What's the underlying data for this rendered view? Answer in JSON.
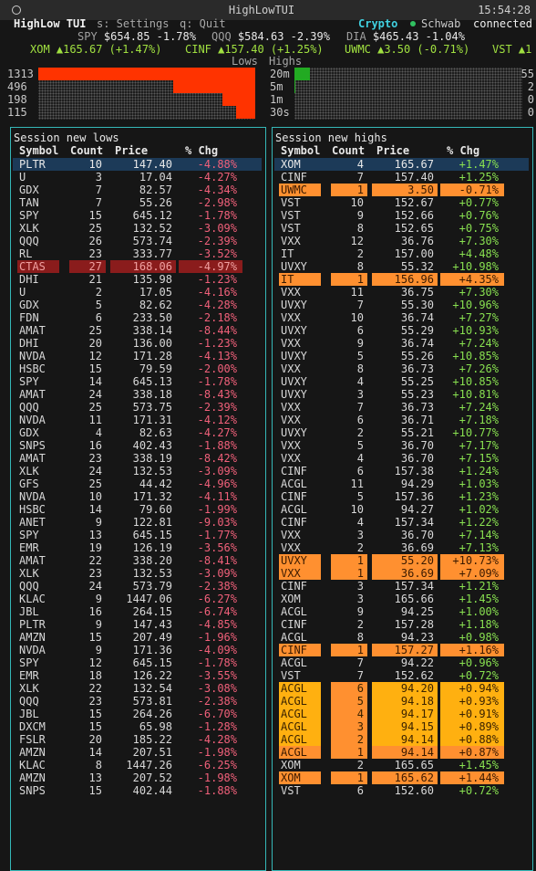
{
  "window": {
    "title": "HighLowTUI",
    "time": "15:54:28"
  },
  "header": {
    "app": "HighLow TUI",
    "keys": [
      "s: Settings",
      "q: Quit"
    ],
    "feeds": [
      "Crypto",
      "Schwab"
    ],
    "status": "connected"
  },
  "indices": [
    {
      "symbol": "SPY",
      "price": "$654.85",
      "change": "-1.78%"
    },
    {
      "symbol": "QQQ",
      "price": "$584.63",
      "change": "-2.39%"
    },
    {
      "symbol": "DIA",
      "price": "$465.43",
      "change": "-1.04%"
    }
  ],
  "watch": [
    {
      "symbol": "XOM",
      "price": "▲165.67",
      "change": "(+1.47%)"
    },
    {
      "symbol": "CINF",
      "price": "▲157.40",
      "change": "(+1.25%)"
    },
    {
      "symbol": "UWMC",
      "price": "▲3.50",
      "change": "(-0.71%)"
    },
    {
      "symbol": "VST",
      "price": "▲1",
      "change": ""
    }
  ],
  "activity": {
    "lows_label": "Lows",
    "highs_label": "Highs",
    "lows_color": "#ff3300",
    "highs_color": "#22aa22",
    "rows": [
      {
        "lows": 1313,
        "window": "20m",
        "highs": 55
      },
      {
        "lows": 496,
        "window": "5m",
        "highs": 2
      },
      {
        "lows": 198,
        "window": "1m",
        "highs": 0
      },
      {
        "lows": 115,
        "window": "30s",
        "highs": 0
      }
    ]
  },
  "lows": {
    "title": "Session new lows",
    "columns": [
      "Symbol",
      "Count",
      "Price",
      "% Chg"
    ],
    "chg_color": "#f0607a",
    "rows": [
      {
        "cells": [
          "PLTR",
          "10",
          "147.40",
          "-4.88%"
        ],
        "bg": "#1c3a58",
        "fg": "#e8e8e8"
      },
      {
        "cells": [
          "U",
          "3",
          "17.04",
          "-4.27%"
        ]
      },
      {
        "cells": [
          "GDX",
          "7",
          "82.57",
          "-4.34%"
        ]
      },
      {
        "cells": [
          "TAN",
          "7",
          "55.26",
          "-2.98%"
        ]
      },
      {
        "cells": [
          "SPY",
          "15",
          "645.12",
          "-1.78%"
        ]
      },
      {
        "cells": [
          "XLK",
          "25",
          "132.52",
          "-3.09%"
        ]
      },
      {
        "cells": [
          "QQQ",
          "26",
          "573.74",
          "-2.39%"
        ]
      },
      {
        "cells": [
          "RL",
          "23",
          "333.77",
          "-3.52%"
        ]
      },
      {
        "cells": [
          "CTAS",
          "27",
          "168.06",
          "-4.97%"
        ],
        "bg": "#8a1c1c",
        "fg": "#f0a0a0"
      },
      {
        "cells": [
          "DHI",
          "21",
          "135.98",
          "-1.23%"
        ]
      },
      {
        "cells": [
          "U",
          "2",
          "17.05",
          "-4.16%"
        ]
      },
      {
        "cells": [
          "GDX",
          "5",
          "82.62",
          "-4.28%"
        ]
      },
      {
        "cells": [
          "FDN",
          "6",
          "233.50",
          "-2.18%"
        ]
      },
      {
        "cells": [
          "AMAT",
          "25",
          "338.14",
          "-8.44%"
        ]
      },
      {
        "cells": [
          "DHI",
          "20",
          "136.00",
          "-1.23%"
        ]
      },
      {
        "cells": [
          "NVDA",
          "12",
          "171.28",
          "-4.13%"
        ]
      },
      {
        "cells": [
          "HSBC",
          "15",
          "79.59",
          "-2.00%"
        ]
      },
      {
        "cells": [
          "SPY",
          "14",
          "645.13",
          "-1.78%"
        ]
      },
      {
        "cells": [
          "AMAT",
          "24",
          "338.18",
          "-8.43%"
        ]
      },
      {
        "cells": [
          "QQQ",
          "25",
          "573.75",
          "-2.39%"
        ]
      },
      {
        "cells": [
          "NVDA",
          "11",
          "171.31",
          "-4.12%"
        ]
      },
      {
        "cells": [
          "GDX",
          "4",
          "82.63",
          "-4.27%"
        ]
      },
      {
        "cells": [
          "SNPS",
          "16",
          "402.43",
          "-1.88%"
        ]
      },
      {
        "cells": [
          "AMAT",
          "23",
          "338.19",
          "-8.42%"
        ]
      },
      {
        "cells": [
          "XLK",
          "24",
          "132.53",
          "-3.09%"
        ]
      },
      {
        "cells": [
          "GFS",
          "25",
          "44.42",
          "-4.96%"
        ]
      },
      {
        "cells": [
          "NVDA",
          "10",
          "171.32",
          "-4.11%"
        ]
      },
      {
        "cells": [
          "HSBC",
          "14",
          "79.60",
          "-1.99%"
        ]
      },
      {
        "cells": [
          "ANET",
          "9",
          "122.81",
          "-9.03%"
        ]
      },
      {
        "cells": [
          "SPY",
          "13",
          "645.15",
          "-1.77%"
        ]
      },
      {
        "cells": [
          "EMR",
          "19",
          "126.19",
          "-3.56%"
        ]
      },
      {
        "cells": [
          "AMAT",
          "22",
          "338.20",
          "-8.41%"
        ]
      },
      {
        "cells": [
          "XLK",
          "23",
          "132.53",
          "-3.09%"
        ]
      },
      {
        "cells": [
          "QQQ",
          "24",
          "573.79",
          "-2.38%"
        ]
      },
      {
        "cells": [
          "KLAC",
          "9",
          "1447.06",
          "-6.27%"
        ]
      },
      {
        "cells": [
          "JBL",
          "16",
          "264.15",
          "-6.74%"
        ]
      },
      {
        "cells": [
          "PLTR",
          "9",
          "147.43",
          "-4.85%"
        ]
      },
      {
        "cells": [
          "AMZN",
          "15",
          "207.49",
          "-1.96%"
        ]
      },
      {
        "cells": [
          "NVDA",
          "9",
          "171.36",
          "-4.09%"
        ]
      },
      {
        "cells": [
          "SPY",
          "12",
          "645.15",
          "-1.78%"
        ]
      },
      {
        "cells": [
          "EMR",
          "18",
          "126.22",
          "-3.55%"
        ]
      },
      {
        "cells": [
          "XLK",
          "22",
          "132.54",
          "-3.08%"
        ]
      },
      {
        "cells": [
          "QQQ",
          "23",
          "573.81",
          "-2.38%"
        ]
      },
      {
        "cells": [
          "JBL",
          "15",
          "264.26",
          "-6.70%"
        ]
      },
      {
        "cells": [
          "DXCM",
          "15",
          "65.98",
          "-1.28%"
        ]
      },
      {
        "cells": [
          "FSLR",
          "20",
          "185.22",
          "-4.28%"
        ]
      },
      {
        "cells": [
          "AMZN",
          "14",
          "207.51",
          "-1.98%"
        ]
      },
      {
        "cells": [
          "KLAC",
          "8",
          "1447.26",
          "-6.25%"
        ]
      },
      {
        "cells": [
          "AMZN",
          "13",
          "207.52",
          "-1.98%"
        ]
      },
      {
        "cells": [
          "SNPS",
          "15",
          "402.44",
          "-1.88%"
        ]
      }
    ]
  },
  "highs": {
    "title": "Session new highs",
    "columns": [
      "Symbol",
      "Count",
      "Price",
      "% Chg"
    ],
    "chg_color": "#88e050",
    "rows": [
      {
        "cells": [
          "XOM",
          "4",
          "165.67",
          "+1.47%"
        ],
        "bg": "#1c3a58",
        "fg": "#e8e8e8"
      },
      {
        "cells": [
          "CINF",
          "7",
          "157.40",
          "+1.25%"
        ]
      },
      {
        "cells": [
          "UWMC",
          "1",
          "3.50",
          "-0.71%"
        ],
        "bg": "#ff9030",
        "fg": "#3a1a00"
      },
      {
        "cells": [
          "VST",
          "10",
          "152.67",
          "+0.77%"
        ]
      },
      {
        "cells": [
          "VST",
          "9",
          "152.66",
          "+0.76%"
        ]
      },
      {
        "cells": [
          "VST",
          "8",
          "152.65",
          "+0.75%"
        ]
      },
      {
        "cells": [
          "VXX",
          "12",
          "36.76",
          "+7.30%"
        ]
      },
      {
        "cells": [
          "IT",
          "2",
          "157.00",
          "+4.48%"
        ]
      },
      {
        "cells": [
          "UVXY",
          "8",
          "55.32",
          "+10.98%"
        ]
      },
      {
        "cells": [
          "IT",
          "1",
          "156.96",
          "+4.35%"
        ],
        "bg": "#ff9030",
        "fg": "#3a1a00"
      },
      {
        "cells": [
          "VXX",
          "11",
          "36.75",
          "+7.30%"
        ]
      },
      {
        "cells": [
          "UVXY",
          "7",
          "55.30",
          "+10.96%"
        ]
      },
      {
        "cells": [
          "VXX",
          "10",
          "36.74",
          "+7.27%"
        ]
      },
      {
        "cells": [
          "UVXY",
          "6",
          "55.29",
          "+10.93%"
        ]
      },
      {
        "cells": [
          "VXX",
          "9",
          "36.74",
          "+7.24%"
        ]
      },
      {
        "cells": [
          "UVXY",
          "5",
          "55.26",
          "+10.85%"
        ]
      },
      {
        "cells": [
          "VXX",
          "8",
          "36.73",
          "+7.26%"
        ]
      },
      {
        "cells": [
          "UVXY",
          "4",
          "55.25",
          "+10.85%"
        ]
      },
      {
        "cells": [
          "UVXY",
          "3",
          "55.23",
          "+10.81%"
        ]
      },
      {
        "cells": [
          "VXX",
          "7",
          "36.73",
          "+7.24%"
        ]
      },
      {
        "cells": [
          "VXX",
          "6",
          "36.71",
          "+7.18%"
        ]
      },
      {
        "cells": [
          "UVXY",
          "2",
          "55.21",
          "+10.77%"
        ]
      },
      {
        "cells": [
          "VXX",
          "5",
          "36.70",
          "+7.17%"
        ]
      },
      {
        "cells": [
          "VXX",
          "4",
          "36.70",
          "+7.15%"
        ]
      },
      {
        "cells": [
          "CINF",
          "6",
          "157.38",
          "+1.24%"
        ]
      },
      {
        "cells": [
          "ACGL",
          "11",
          "94.29",
          "+1.03%"
        ]
      },
      {
        "cells": [
          "CINF",
          "5",
          "157.36",
          "+1.23%"
        ]
      },
      {
        "cells": [
          "ACGL",
          "10",
          "94.27",
          "+1.02%"
        ]
      },
      {
        "cells": [
          "CINF",
          "4",
          "157.34",
          "+1.22%"
        ]
      },
      {
        "cells": [
          "VXX",
          "3",
          "36.70",
          "+7.14%"
        ]
      },
      {
        "cells": [
          "VXX",
          "2",
          "36.69",
          "+7.13%"
        ]
      },
      {
        "cells": [
          "UVXY",
          "1",
          "55.20",
          "+10.73%"
        ],
        "bg": "#ff9030",
        "fg": "#3a1a00"
      },
      {
        "cells": [
          "VXX",
          "1",
          "36.69",
          "+7.09%"
        ],
        "bg": "#ff9030",
        "fg": "#3a1a00"
      },
      {
        "cells": [
          "CINF",
          "3",
          "157.34",
          "+1.21%"
        ]
      },
      {
        "cells": [
          "XOM",
          "3",
          "165.66",
          "+1.45%"
        ]
      },
      {
        "cells": [
          "ACGL",
          "9",
          "94.25",
          "+1.00%"
        ]
      },
      {
        "cells": [
          "CINF",
          "2",
          "157.28",
          "+1.18%"
        ]
      },
      {
        "cells": [
          "ACGL",
          "8",
          "94.23",
          "+0.98%"
        ]
      },
      {
        "cells": [
          "CINF",
          "1",
          "157.27",
          "+1.16%"
        ],
        "bg": "#ff9030",
        "fg": "#3a1a00"
      },
      {
        "cells": [
          "ACGL",
          "7",
          "94.22",
          "+0.96%"
        ]
      },
      {
        "cells": [
          "VST",
          "7",
          "152.62",
          "+0.72%"
        ]
      },
      {
        "cells": [
          "ACGL",
          "6",
          "94.20",
          "+0.94%"
        ],
        "bg": "#ffb010",
        "fg": "#3a2200"
      },
      {
        "cells": [
          "ACGL",
          "5",
          "94.18",
          "+0.93%"
        ],
        "bg": "#ffb010",
        "fg": "#3a2200"
      },
      {
        "cells": [
          "ACGL",
          "4",
          "94.17",
          "+0.91%"
        ],
        "bg": "#ffb010",
        "fg": "#3a2200"
      },
      {
        "cells": [
          "ACGL",
          "3",
          "94.15",
          "+0.89%"
        ],
        "bg": "#ffb010",
        "fg": "#3a2200"
      },
      {
        "cells": [
          "ACGL",
          "2",
          "94.14",
          "+0.88%"
        ],
        "bg": "#ffb010",
        "fg": "#3a2200"
      },
      {
        "cells": [
          "ACGL",
          "1",
          "94.14",
          "+0.87%"
        ],
        "bg": "#ff9030",
        "fg": "#3a1a00"
      },
      {
        "cells": [
          "XOM",
          "2",
          "165.65",
          "+1.45%"
        ]
      },
      {
        "cells": [
          "XOM",
          "1",
          "165.62",
          "+1.44%"
        ],
        "bg": "#ff9030",
        "fg": "#3a1a00"
      },
      {
        "cells": [
          "VST",
          "6",
          "152.60",
          "+0.72%"
        ]
      }
    ]
  }
}
